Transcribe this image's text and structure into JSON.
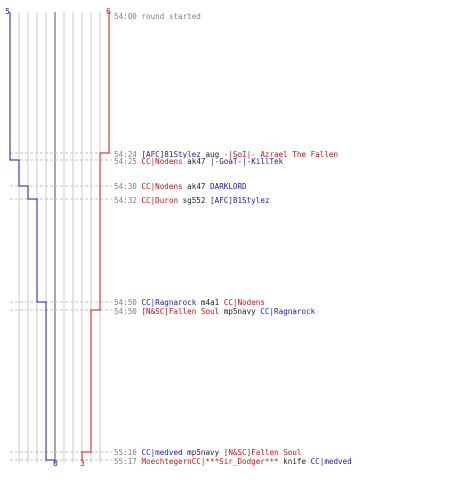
{
  "score": {
    "blue_start": "5",
    "red_start": "6",
    "blue_end": "0",
    "red_end": "3"
  },
  "colors": {
    "blue": "#1a1aa8",
    "red": "#c41414",
    "grid": "#c8c8c8",
    "center": "#7a7a7a",
    "dash": "#c0c0c0"
  },
  "log": [
    {
      "time": "54:00",
      "text": "round started"
    },
    {
      "time": "54:24",
      "killer": "[AFC]81Stylez",
      "killer_team": "blue",
      "weapon": "aug",
      "victim": "-|SoI|- Azrael The Fallen",
      "victim_team": "red"
    },
    {
      "time": "54:25",
      "killer": "CC|Nodens",
      "killer_team": "red",
      "weapon": "ak47",
      "victim": "|-GoaT-|-KillTek",
      "victim_team": "blue"
    },
    {
      "time": "54:30",
      "killer": "CC|Nodens",
      "killer_team": "red",
      "weapon": "ak47",
      "victim": "DARKLORD",
      "victim_team": "blue"
    },
    {
      "time": "54:32",
      "killer": "CC|Duron",
      "killer_team": "red",
      "weapon": "sg552",
      "victim": "[AFC]81Stylez",
      "victim_team": "blue"
    },
    {
      "time": "54:50",
      "killer": "CC|Ragnarock",
      "killer_team": "blue",
      "weapon": "m4a1",
      "victim": "CC|Nodens",
      "victim_team": "red"
    },
    {
      "time": "54:50",
      "killer": "[N&SC]Fallen Soul",
      "killer_team": "red",
      "weapon": "mp5navy",
      "victim": "CC|Ragnarock",
      "victim_team": "blue"
    },
    {
      "time": "55:16",
      "killer": "CC|medved",
      "killer_team": "blue",
      "weapon": "mp5navy",
      "victim": "[N&SC]Fallen Soul",
      "victim_team": "red"
    },
    {
      "time": "55:17",
      "killer": "MoechtegernCC|***Sir_Dodger***",
      "killer_team": "red",
      "weapon": "knife",
      "victim": "CC|medved",
      "victim_team": "blue"
    }
  ]
}
